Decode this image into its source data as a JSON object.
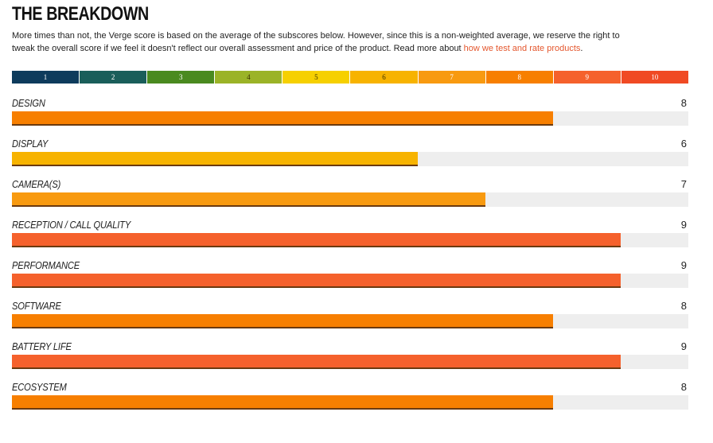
{
  "header": {
    "title": "THE BREAKDOWN",
    "intro_text": "More times than not, the Verge score is based on the average of the subscores below. However, since this is a non-weighted average, we reserve the right to tweak the overall score if we feel it doesn't reflect our overall assessment and price of the product. Read more about ",
    "link_text": "how we test and rate products",
    "intro_end": "."
  },
  "scale": [
    {
      "label": "1",
      "color": "#0e3b5c"
    },
    {
      "label": "2",
      "color": "#1a5e5a"
    },
    {
      "label": "3",
      "color": "#4a8a1f"
    },
    {
      "label": "4",
      "color": "#9bb327"
    },
    {
      "label": "5",
      "color": "#f6d000"
    },
    {
      "label": "6",
      "color": "#f7b300"
    },
    {
      "label": "7",
      "color": "#f89a10"
    },
    {
      "label": "8",
      "color": "#f77f00"
    },
    {
      "label": "9",
      "color": "#f5612c"
    },
    {
      "label": "10",
      "color": "#f04a24"
    }
  ],
  "categories": [
    {
      "label": "DESIGN",
      "score": "8",
      "value": 8,
      "color": "#f77f00"
    },
    {
      "label": "DISPLAY",
      "score": "6",
      "value": 6,
      "color": "#f7b300"
    },
    {
      "label": "CAMERA(S)",
      "score": "7",
      "value": 7,
      "color": "#f89a10"
    },
    {
      "label": "RECEPTION / CALL QUALITY",
      "score": "9",
      "value": 9,
      "color": "#f5612c"
    },
    {
      "label": "PERFORMANCE",
      "score": "9",
      "value": 9,
      "color": "#f5612c"
    },
    {
      "label": "SOFTWARE",
      "score": "8",
      "value": 8,
      "color": "#f77f00"
    },
    {
      "label": "BATTERY LIFE",
      "score": "9",
      "value": 9,
      "color": "#f5612c"
    },
    {
      "label": "ECOSYSTEM",
      "score": "8",
      "value": 8,
      "color": "#f77f00"
    }
  ],
  "max_score": 10
}
